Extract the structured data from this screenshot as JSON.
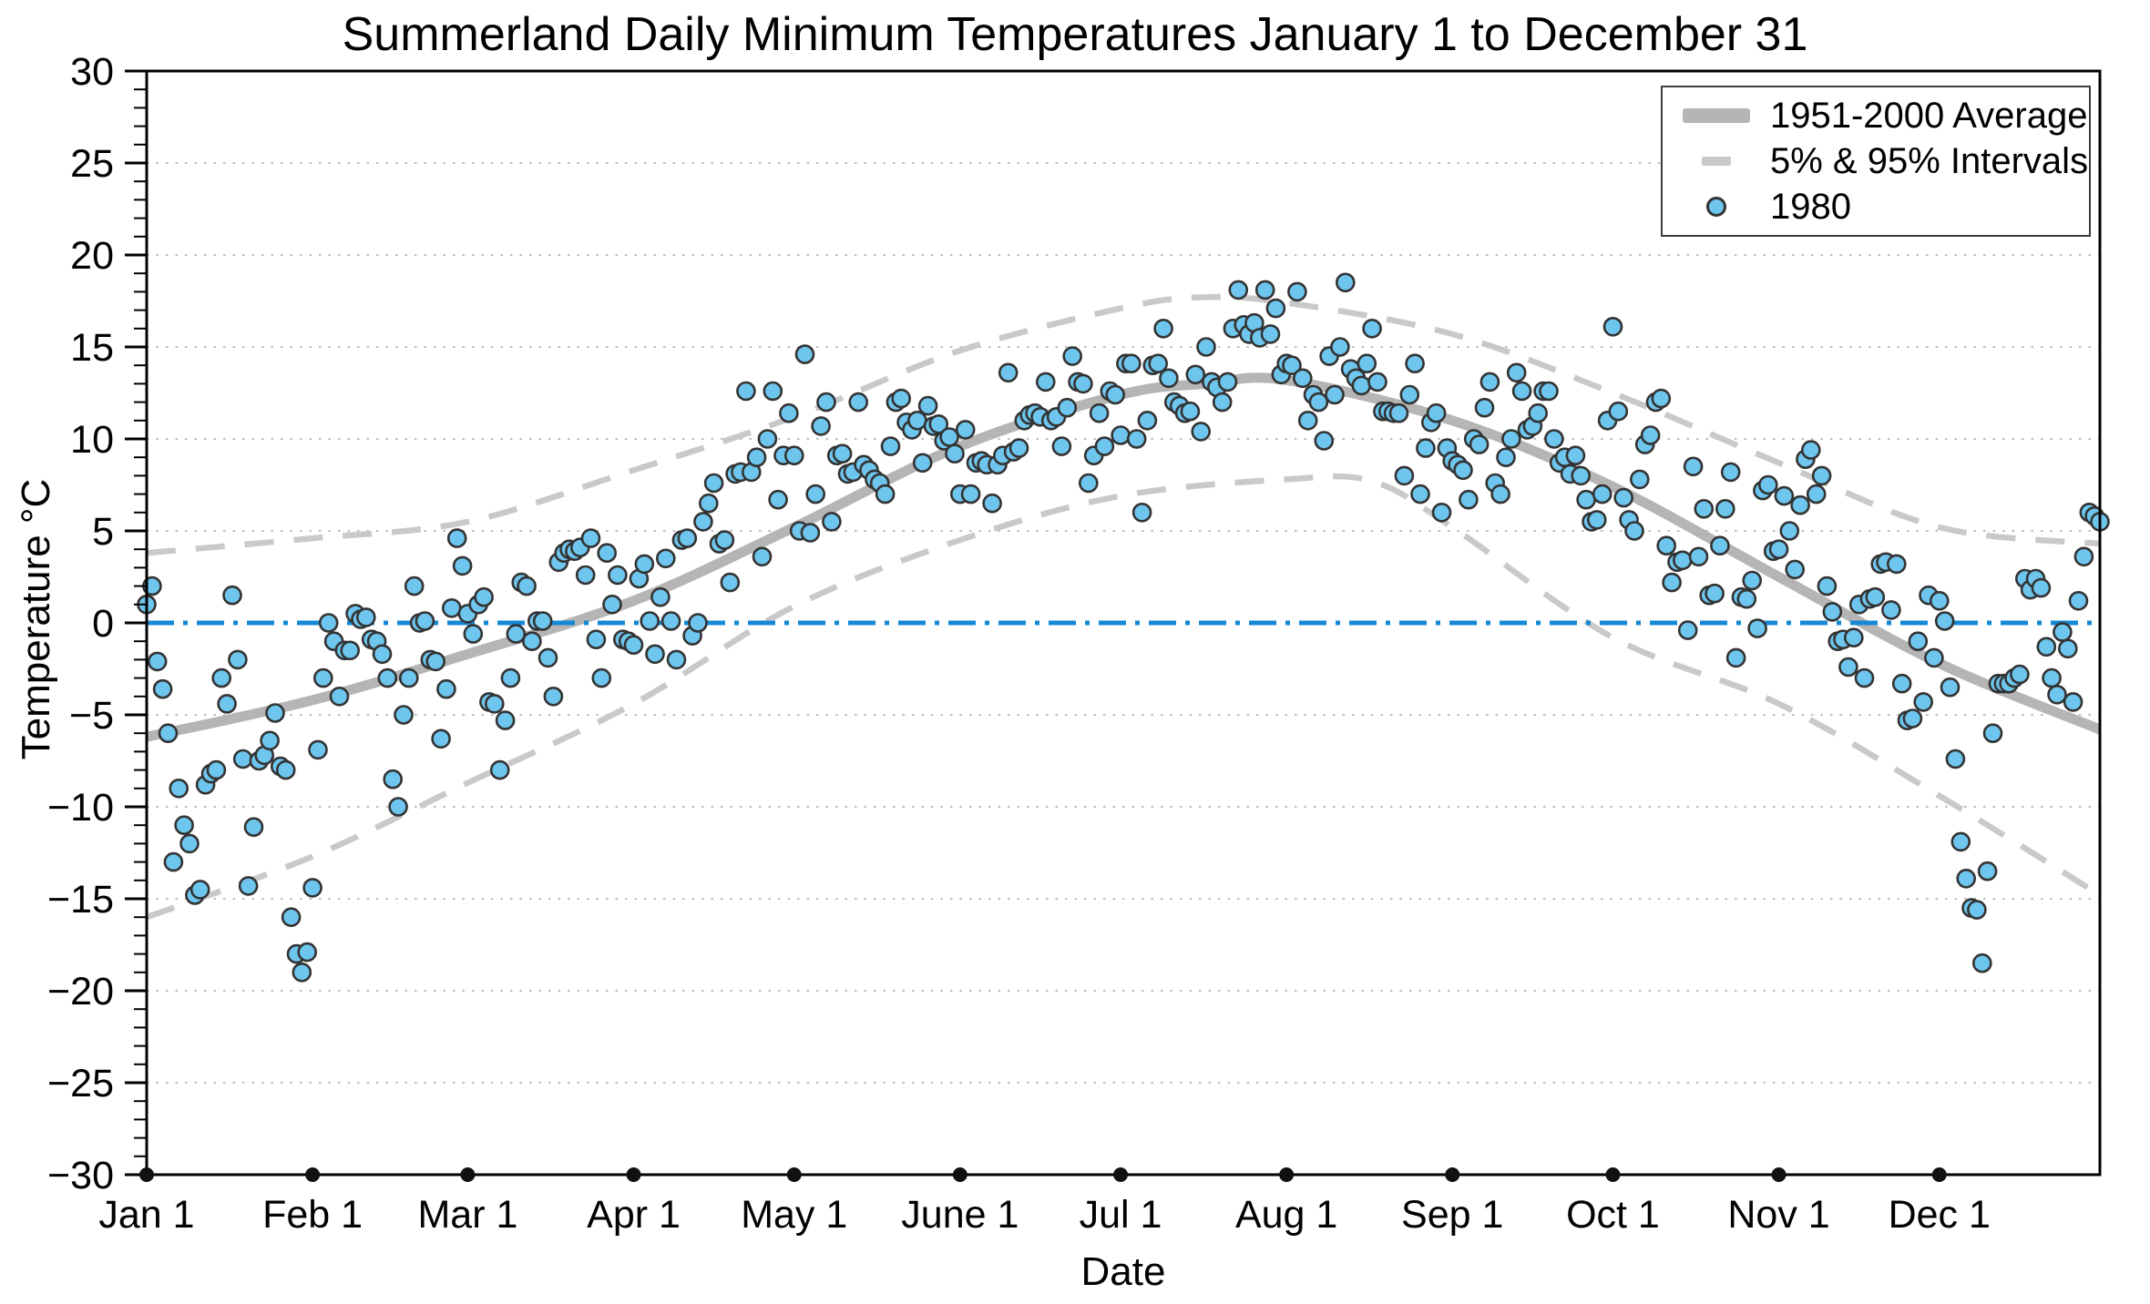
{
  "page": {
    "title": "Summerland Daily Minimum Temperatures January 1 to December 31"
  },
  "chart_data": {
    "type": "scatter",
    "title": "Summerland Daily Minimum Temperatures January 1 to December 31",
    "xlabel": "Date",
    "ylabel": "Temperature °C",
    "ylim": [
      -30,
      30
    ],
    "y_major_tick_step": 5,
    "y_minor_tick_step": 1,
    "grid": "horizontal dotted line every 5 degrees, on",
    "x_unit": "day of year (1980, leap year, 1..366)",
    "x_range_days": [
      1,
      366
    ],
    "x_ticks": [
      {
        "label": "Jan 1",
        "doy": 1
      },
      {
        "label": "Feb 1",
        "doy": 32
      },
      {
        "label": "Mar 1",
        "doy": 61
      },
      {
        "label": "Apr 1",
        "doy": 92
      },
      {
        "label": "May 1",
        "doy": 122
      },
      {
        "label": "June 1",
        "doy": 153
      },
      {
        "label": "Jul 1",
        "doy": 183
      },
      {
        "label": "Aug 1",
        "doy": 214
      },
      {
        "label": "Sep 1",
        "doy": 245
      },
      {
        "label": "Oct 1",
        "doy": 275
      },
      {
        "label": "Nov 1",
        "doy": 306
      },
      {
        "label": "Dec 1",
        "doy": 336
      }
    ],
    "colors": {
      "average_line": "#b5b5b5",
      "interval_line": "#c9c9c9",
      "scatter_fill": "#6ec6ee",
      "scatter_stroke": "#333333",
      "zero_line": "#1588d6",
      "gridline": "#a6a6a6",
      "axis": "#000000"
    },
    "zero_line": {
      "value": 0,
      "style": "dash-dot",
      "color": "#1588d6"
    },
    "legend": {
      "position": "upper right",
      "entries": [
        {
          "label": "1951-2000 Average",
          "type": "thick-line"
        },
        {
          "label": "5% & 95% Intervals",
          "type": "dashed-line"
        },
        {
          "label": "1980",
          "type": "circle-marker"
        }
      ]
    },
    "series": [
      {
        "name": "1951-2000 Average",
        "type": "line",
        "style": "solid-thick",
        "points": [
          [
            1,
            -6.2
          ],
          [
            32,
            -4.2
          ],
          [
            61,
            -1.7
          ],
          [
            92,
            1.2
          ],
          [
            122,
            5.2
          ],
          [
            153,
            9.6
          ],
          [
            183,
            12.4
          ],
          [
            199,
            13.0
          ],
          [
            214,
            13.2
          ],
          [
            245,
            11.0
          ],
          [
            275,
            7.4
          ],
          [
            306,
            2.5
          ],
          [
            336,
            -2.2
          ],
          [
            366,
            -5.8
          ]
        ]
      },
      {
        "name": "95% Interval (upper)",
        "type": "line",
        "style": "dashed",
        "points": [
          [
            1,
            3.8
          ],
          [
            32,
            4.6
          ],
          [
            61,
            5.5
          ],
          [
            92,
            8.3
          ],
          [
            122,
            11.2
          ],
          [
            153,
            14.8
          ],
          [
            183,
            17.1
          ],
          [
            198,
            17.7
          ],
          [
            214,
            17.4
          ],
          [
            245,
            15.7
          ],
          [
            275,
            12.5
          ],
          [
            306,
            8.7
          ],
          [
            336,
            5.2
          ],
          [
            366,
            4.3
          ]
        ]
      },
      {
        "name": "5% Interval (lower)",
        "type": "line",
        "style": "dashed",
        "points": [
          [
            1,
            -16.0
          ],
          [
            32,
            -12.7
          ],
          [
            61,
            -8.7
          ],
          [
            92,
            -4.4
          ],
          [
            122,
            0.9
          ],
          [
            153,
            4.5
          ],
          [
            183,
            6.9
          ],
          [
            214,
            7.8
          ],
          [
            230,
            7.7
          ],
          [
            245,
            5.2
          ],
          [
            275,
            -0.8
          ],
          [
            306,
            -4.4
          ],
          [
            336,
            -9.4
          ],
          [
            366,
            -14.8
          ]
        ]
      },
      {
        "name": "1980",
        "type": "scatter",
        "marker": "circle",
        "x_is_day_of_year_starting_at_1": true,
        "values": [
          1.0,
          2.0,
          -2.1,
          -3.6,
          -6.0,
          -13.0,
          -9.0,
          -11.0,
          -12.0,
          -14.8,
          -14.5,
          -8.8,
          -8.2,
          -8.0,
          -3.0,
          -4.4,
          1.5,
          -2.0,
          -7.4,
          -14.3,
          -11.1,
          -7.5,
          -7.2,
          -6.4,
          -4.9,
          -7.8,
          -8.0,
          -16.0,
          -18.0,
          -19.0,
          -17.9,
          -14.4,
          -6.9,
          -3.0,
          0.0,
          -1.0,
          -4.0,
          -1.5,
          -1.5,
          0.5,
          0.2,
          0.3,
          -0.9,
          -1.0,
          -1.7,
          -3.0,
          -8.5,
          -10.0,
          -5.0,
          -3.0,
          2.0,
          0.0,
          0.1,
          -2.0,
          -2.1,
          -6.3,
          -3.6,
          0.8,
          4.6,
          3.1,
          0.5,
          -0.6,
          1.0,
          1.4,
          -4.3,
          -4.4,
          -8.0,
          -5.3,
          -3.0,
          -0.6,
          2.2,
          2.0,
          -1.0,
          0.1,
          0.1,
          -1.9,
          -4.0,
          3.3,
          3.8,
          4.0,
          3.9,
          4.1,
          2.6,
          4.6,
          -0.9,
          -3.0,
          3.8,
          1.0,
          2.6,
          -0.9,
          -1.0,
          -1.2,
          2.4,
          3.2,
          0.1,
          -1.7,
          1.4,
          3.5,
          0.1,
          -2.0,
          4.5,
          4.6,
          -0.7,
          0.0,
          5.5,
          6.5,
          7.6,
          4.3,
          4.5,
          2.2,
          8.1,
          8.2,
          12.6,
          8.2,
          9.0,
          3.6,
          10.0,
          12.6,
          6.7,
          9.1,
          11.4,
          9.1,
          5.0,
          14.6,
          4.9,
          7.0,
          10.7,
          12.0,
          5.5,
          9.1,
          9.2,
          8.1,
          8.2,
          12.0,
          8.6,
          8.3,
          7.8,
          7.6,
          7.0,
          9.6,
          12.0,
          12.2,
          10.9,
          10.5,
          11.0,
          8.7,
          11.8,
          10.7,
          10.8,
          9.9,
          10.1,
          9.2,
          7.0,
          10.5,
          7.0,
          8.7,
          8.8,
          8.6,
          6.5,
          8.6,
          9.1,
          13.6,
          9.3,
          9.5,
          11.0,
          11.3,
          11.4,
          11.2,
          13.1,
          11.0,
          11.2,
          9.6,
          11.7,
          14.5,
          13.1,
          13.0,
          7.6,
          9.1,
          11.4,
          9.6,
          12.6,
          12.4,
          10.2,
          14.1,
          14.1,
          10.0,
          6.0,
          11.0,
          14.0,
          14.1,
          16.0,
          13.3,
          12.0,
          11.8,
          11.4,
          11.5,
          13.5,
          10.4,
          15.0,
          13.1,
          12.8,
          12.0,
          13.1,
          16.0,
          18.1,
          16.2,
          15.7,
          16.3,
          15.5,
          18.1,
          15.7,
          17.1,
          13.5,
          14.1,
          14.0,
          18.0,
          13.3,
          11.0,
          12.4,
          12.0,
          9.9,
          14.5,
          12.4,
          15.0,
          18.5,
          13.8,
          13.3,
          12.9,
          14.1,
          16.0,
          13.1,
          11.5,
          11.5,
          11.4,
          11.4,
          8.0,
          12.4,
          14.1,
          7.0,
          9.5,
          10.9,
          11.4,
          6.0,
          9.5,
          8.8,
          8.6,
          8.3,
          6.7,
          10.0,
          9.7,
          11.7,
          13.1,
          7.6,
          7.0,
          9.0,
          10.0,
          13.6,
          12.6,
          10.5,
          10.7,
          11.4,
          12.6,
          12.6,
          10.0,
          8.7,
          9.0,
          8.1,
          9.1,
          8.0,
          6.7,
          5.5,
          5.6,
          7.0,
          11.0,
          16.1,
          11.5,
          6.8,
          5.6,
          5.0,
          7.8,
          9.7,
          10.2,
          12.0,
          12.2,
          4.2,
          2.2,
          3.3,
          3.4,
          -0.4,
          8.5,
          3.6,
          6.2,
          1.5,
          1.6,
          4.2,
          6.2,
          8.2,
          -1.9,
          1.4,
          1.3,
          2.3,
          -0.3,
          7.2,
          7.5,
          3.9,
          4.0,
          6.9,
          5.0,
          2.9,
          6.4,
          8.9,
          9.4,
          7.0,
          8.0,
          2.0,
          0.6,
          -1.0,
          -0.9,
          -2.4,
          -0.8,
          1.0,
          -3.0,
          1.3,
          1.4,
          3.2,
          3.3,
          0.7,
          3.2,
          -3.3,
          -5.3,
          -5.2,
          -1.0,
          -4.3,
          1.5,
          -1.9,
          1.2,
          0.1,
          -3.5,
          -7.4,
          -11.9,
          -13.9,
          -15.5,
          -15.6,
          -18.5,
          -13.5,
          -6.0,
          -3.3,
          -3.3,
          -3.3,
          -3.0,
          -2.8,
          2.4,
          1.8,
          2.4,
          1.9,
          -1.3,
          -3.0,
          -3.9,
          -0.5,
          -1.4,
          -4.3,
          1.2,
          3.6,
          6.0,
          5.8,
          5.5
        ]
      }
    ]
  }
}
